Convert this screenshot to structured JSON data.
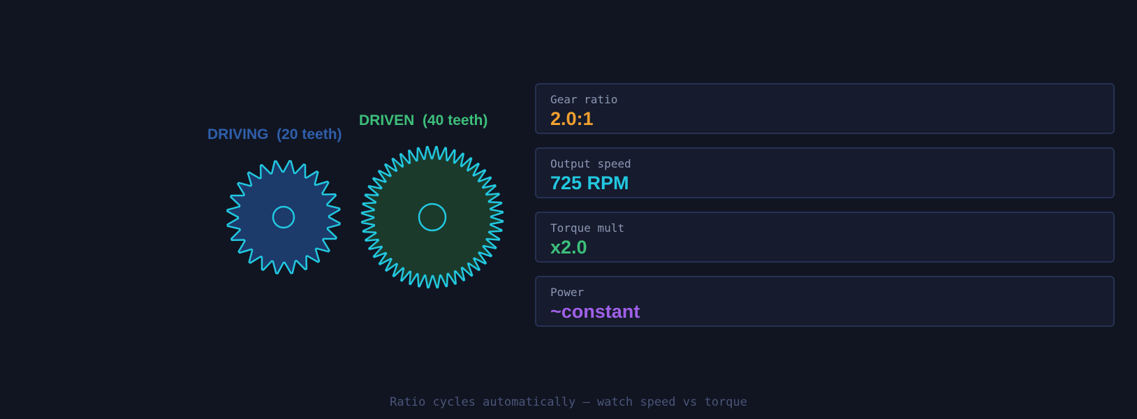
{
  "gears": [
    {
      "label": "DRIVING  (20 teeth)"
    },
    {
      "label": "DRIVEN  (40 teeth)"
    }
  ],
  "metrics": [
    {
      "label": "Gear ratio",
      "value": "2.0:1"
    },
    {
      "label": "Output speed",
      "value": "725 RPM"
    },
    {
      "label": "Torque mult",
      "value": "x2.0"
    },
    {
      "label": "Power",
      "value": "~constant"
    }
  ],
  "footer": "Ratio cycles automatically — watch speed vs torque"
}
